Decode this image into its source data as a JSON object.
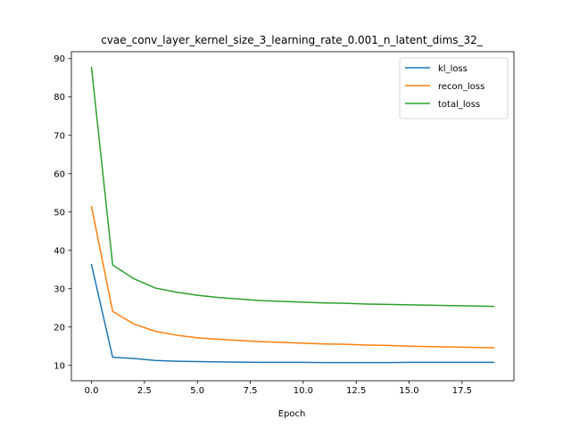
{
  "chart_data": {
    "type": "line",
    "title": "cvae_conv_layer_kernel_size_3_learning_rate_0.001_n_latent_dims_32_",
    "xlabel": "Epoch",
    "ylabel": "",
    "x": [
      0,
      1,
      2,
      3,
      4,
      5,
      6,
      7,
      8,
      9,
      10,
      11,
      12,
      13,
      14,
      15,
      16,
      17,
      18,
      19
    ],
    "xlim": [
      -0.95,
      19.95
    ],
    "ylim": [
      6.0,
      91.8
    ],
    "xticks": [
      0.0,
      2.5,
      5.0,
      7.5,
      10.0,
      12.5,
      15.0,
      17.5
    ],
    "xtick_labels": [
      "0.0",
      "2.5",
      "5.0",
      "7.5",
      "10.0",
      "12.5",
      "15.0",
      "17.5"
    ],
    "yticks": [
      10,
      20,
      30,
      40,
      50,
      60,
      70,
      80,
      90
    ],
    "ytick_labels": [
      "10",
      "20",
      "30",
      "40",
      "50",
      "60",
      "70",
      "80",
      "90"
    ],
    "grid": false,
    "legend_position": "top-right",
    "series": [
      {
        "name": "kl_loss",
        "color": "#1f77b4",
        "values": [
          36.3,
          12.1,
          11.8,
          11.3,
          11.1,
          11.0,
          10.9,
          10.85,
          10.8,
          10.8,
          10.8,
          10.75,
          10.75,
          10.75,
          10.75,
          10.8,
          10.8,
          10.8,
          10.8,
          10.8
        ]
      },
      {
        "name": "recon_loss",
        "color": "#ff7f0e",
        "values": [
          51.4,
          24.1,
          20.8,
          18.9,
          17.9,
          17.2,
          16.8,
          16.5,
          16.2,
          16.0,
          15.8,
          15.6,
          15.5,
          15.3,
          15.2,
          15.0,
          14.9,
          14.8,
          14.7,
          14.6
        ]
      },
      {
        "name": "total_loss",
        "color": "#2ca02c",
        "values": [
          87.7,
          36.2,
          32.6,
          30.2,
          29.1,
          28.3,
          27.7,
          27.3,
          26.9,
          26.7,
          26.5,
          26.3,
          26.2,
          26.0,
          25.9,
          25.8,
          25.7,
          25.6,
          25.5,
          25.4
        ]
      }
    ]
  }
}
